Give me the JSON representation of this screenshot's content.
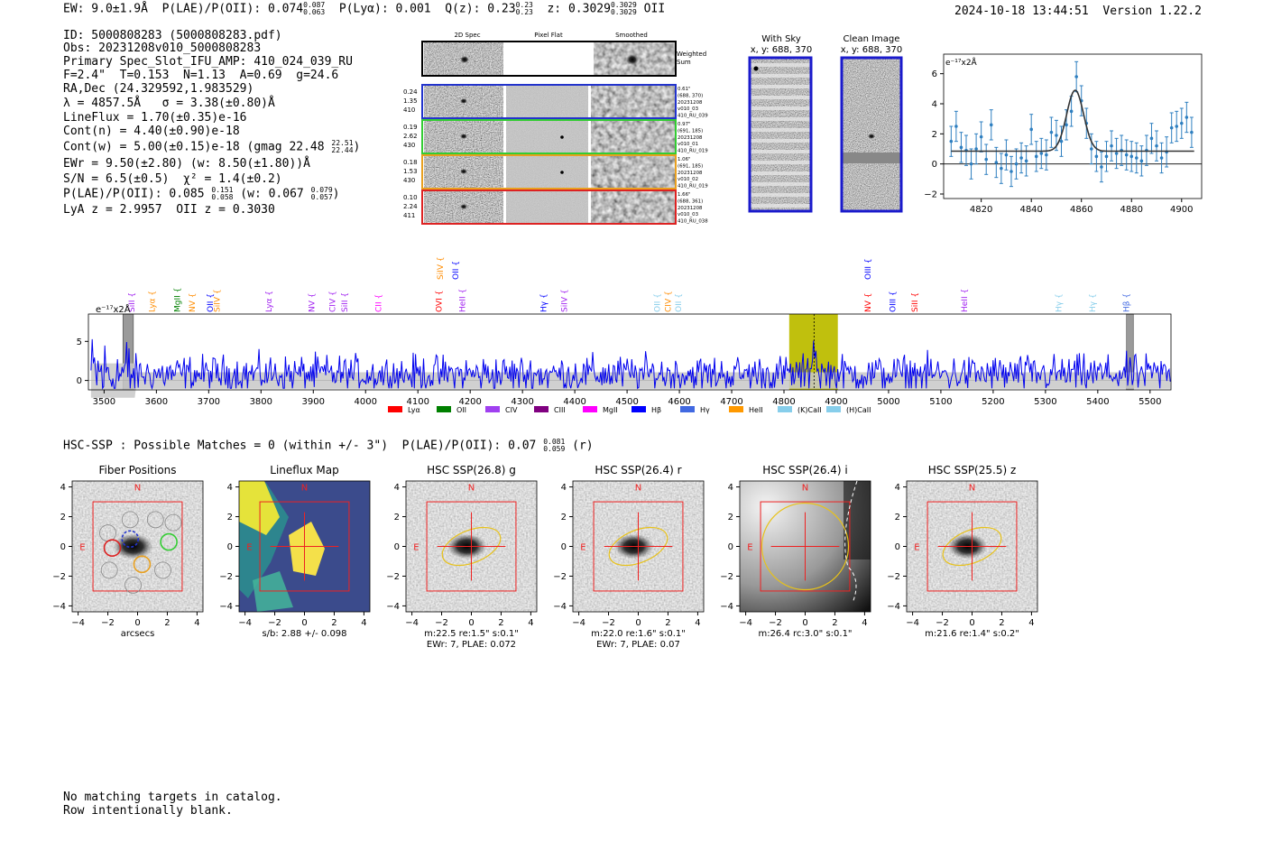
{
  "header": {
    "ew": "EW: 9.0±1.9Å",
    "plae_label": "P(LAE)/P(OII):",
    "plae_val": "0.074",
    "plae_hi": "0.087",
    "plae_lo": "0.063",
    "plya": "P(Lyα): 0.001",
    "qz_label": "Q(z):",
    "qz_val": "0.23",
    "qz_hi": "0.23",
    "qz_lo": "0.23",
    "z_label": "z:",
    "z_val": "0.3029",
    "z_hi": "0.3029",
    "z_lo": "0.3029",
    "z_line": "OII",
    "timestamp": "2024-10-18 13:44:51",
    "version": "Version 1.22.2"
  },
  "info": {
    "line1": "ID: 5000808283 (5000808283.pdf)",
    "line2": "Obs: 20231208v010_5000808283",
    "line3": "Primary Spec_Slot_IFU_AMP: 410_024_039_RU",
    "line4": "F=2.4\"  T=0.153  N=1.13  A=0.69  g=24.6",
    "line5": "RA,Dec (24.329592,1.983529)",
    "line6": "λ = 4857.5Å   σ = 3.38(±0.80)Å",
    "line7": "LineFlux = 1.70(±0.35)e-16",
    "line8": "Cont(n) = 4.40(±0.90)e-18",
    "line9_a": "Cont(w) = 5.00(±0.15)e-18 (gmag 22.48",
    "line9_hi": "22.51",
    "line9_lo": "22.44",
    "line9_b": ")",
    "line10": "EWr = 9.50(±2.80) (w: 8.50(±1.80))Å",
    "line11": "S/N = 6.5(±0.5)  χ² = 1.4(±0.2)",
    "line12_a": "P(LAE)/P(OII): 0.085",
    "line12_hi1": "0.151",
    "line12_lo1": "0.058",
    "line12_b": "(w: 0.067",
    "line12_hi2": "0.079",
    "line12_lo2": "0.057",
    "line12_c": ")",
    "line13": "LyA z = 2.9957  OII z = 0.3030"
  },
  "cutouts": {
    "col_headers": [
      "2D Spec",
      "Pixel Flat",
      "Smoothed"
    ],
    "weighted_label_1": "Weighted",
    "weighted_label_2": "Sum",
    "rows": [
      {
        "left": [
          "0.24",
          "1.35",
          "410"
        ],
        "right": [
          "0.61\"",
          "(688, 370)",
          "20231208",
          "v010_03",
          "410_RU_039"
        ],
        "color": "#2233cc"
      },
      {
        "left": [
          "0.19",
          "2.62",
          "430"
        ],
        "right": [
          "0.97\"",
          "(691, 185)",
          "20231208",
          "v010_01",
          "410_RU_019"
        ],
        "color": "#33cc33"
      },
      {
        "left": [
          "0.18",
          "1.53",
          "430"
        ],
        "right": [
          "1.06\"",
          "(691, 185)",
          "20231208",
          "v010_02",
          "410_RU_019"
        ],
        "color": "#e8a020"
      },
      {
        "left": [
          "0.10",
          "2.24",
          "411"
        ],
        "right": [
          "1.66\"",
          "(688, 361)",
          "20231208",
          "v010_03",
          "410_RU_038"
        ],
        "color": "#dd2222"
      }
    ],
    "with_sky_title": "With Sky",
    "with_sky_xy": "x, y: 688, 370",
    "clean_title": "Clean Image",
    "clean_xy": "x, y: 688, 370"
  },
  "zoom_chart": {
    "unit_label": "e⁻¹⁷x2Å",
    "chart_data": {
      "type": "scatter",
      "xlim": [
        4805,
        4908
      ],
      "ylim": [
        -2.3,
        7.3
      ],
      "xticks": [
        4820,
        4840,
        4860,
        4880,
        4900
      ],
      "yticks": [
        -2,
        0,
        2,
        4,
        6
      ],
      "points_x": [
        4808,
        4810,
        4812,
        4814,
        4816,
        4818,
        4820,
        4822,
        4824,
        4826,
        4828,
        4830,
        4832,
        4834,
        4836,
        4838,
        4840,
        4842,
        4844,
        4846,
        4848,
        4850,
        4852,
        4854,
        4856,
        4858,
        4860,
        4862,
        4864,
        4866,
        4868,
        4870,
        4872,
        4874,
        4876,
        4878,
        4880,
        4882,
        4884,
        4886,
        4888,
        4890,
        4892,
        4894,
        4896,
        4898,
        4900,
        4902,
        4904
      ],
      "points_y": [
        1.5,
        2.5,
        1.1,
        0.9,
        0.0,
        1.0,
        1.8,
        0.3,
        2.6,
        0.1,
        -0.3,
        0.6,
        -0.5,
        0.0,
        0.4,
        0.2,
        2.3,
        0.5,
        0.7,
        0.6,
        2.1,
        1.9,
        1.5,
        2.6,
        3.5,
        5.8,
        4.2,
        2.7,
        1.0,
        0.5,
        -0.2,
        0.5,
        1.2,
        0.7,
        0.9,
        0.6,
        0.5,
        0.4,
        0.2,
        0.9,
        1.7,
        1.2,
        0.4,
        0.8,
        2.4,
        2.5,
        2.7,
        3.1,
        2.1
      ],
      "error": 1.0,
      "fit": {
        "center": 4857.5,
        "sigma": 3.38,
        "amp": 4.05,
        "base": 0.85
      }
    }
  },
  "spectrum": {
    "unit_label": "e⁻¹⁷x2Å",
    "chart_data": {
      "type": "line",
      "xlim": [
        3470,
        5540
      ],
      "ylim": [
        -1.2,
        8.5
      ],
      "xticks": [
        3500,
        3600,
        3700,
        3800,
        3900,
        4000,
        4100,
        4200,
        4300,
        4400,
        4500,
        4600,
        4700,
        4800,
        4900,
        5000,
        5100,
        5200,
        5300,
        5400,
        5500
      ],
      "yticks": [
        0,
        5
      ],
      "highlight": [
        4810,
        4903
      ],
      "line_center": 4857.5,
      "masked": [
        [
          3536,
          3556
        ],
        [
          5455,
          5468
        ]
      ],
      "emission_lines": [
        {
          "label": "SiII",
          "x": 3553,
          "color": "#a020f0",
          "row": 1
        },
        {
          "label": "Lyα",
          "x": 3592,
          "color": "#ff8c00",
          "row": 1
        },
        {
          "label": "MgII",
          "x": 3640,
          "color": "#008000",
          "row": 1
        },
        {
          "label": "NV",
          "x": 3668,
          "color": "#ff8c00",
          "row": 1
        },
        {
          "label": "OII",
          "x": 3703,
          "color": "#0000ff",
          "row": 1
        },
        {
          "label": "SiIV",
          "x": 3716,
          "color": "#ff8c00",
          "row": 1
        },
        {
          "label": "Lyα",
          "x": 3815,
          "color": "#a020f0",
          "row": 1
        },
        {
          "label": "NV",
          "x": 3897,
          "color": "#a020f0",
          "row": 1
        },
        {
          "label": "CIV",
          "x": 3937,
          "color": "#a020f0",
          "row": 1
        },
        {
          "label": "SiII",
          "x": 3960,
          "color": "#a020f0",
          "row": 1
        },
        {
          "label": "CII",
          "x": 4025,
          "color": "#ff00ff",
          "row": 1
        },
        {
          "label": "OVI",
          "x": 4140,
          "color": "#ff0000",
          "row": 1
        },
        {
          "label": "HeII",
          "x": 4185,
          "color": "#a020f0",
          "row": 1
        },
        {
          "label": "SiIV",
          "x": 4143,
          "color": "#ff8c00",
          "row": 2
        },
        {
          "label": "OII",
          "x": 4172,
          "color": "#0000ff",
          "row": 2
        },
        {
          "label": "Hγ",
          "x": 4340,
          "color": "#0000ff",
          "row": 1
        },
        {
          "label": "SiIV",
          "x": 4380,
          "color": "#a020f0",
          "row": 1
        },
        {
          "label": "OII",
          "x": 4558,
          "color": "#87ceeb",
          "row": 1
        },
        {
          "label": "CIV",
          "x": 4578,
          "color": "#ff8c00",
          "row": 1
        },
        {
          "label": "OII",
          "x": 4598,
          "color": "#87ceeb",
          "row": 1
        },
        {
          "label": "OIII",
          "x": 4960,
          "color": "#0000ff",
          "row": 2
        },
        {
          "label": "NV",
          "x": 4960,
          "color": "#ff0000",
          "row": 1
        },
        {
          "label": "OIII",
          "x": 5008,
          "color": "#0000ff",
          "row": 1
        },
        {
          "label": "SiII",
          "x": 5050,
          "color": "#ff0000",
          "row": 1
        },
        {
          "label": "HeII",
          "x": 5145,
          "color": "#a020f0",
          "row": 1
        },
        {
          "label": "Hγ",
          "x": 5325,
          "color": "#87ceeb",
          "row": 1
        },
        {
          "label": "Hγ",
          "x": 5390,
          "color": "#87ceeb",
          "row": 1
        },
        {
          "label": "Hβ",
          "x": 5455,
          "color": "#4169e1",
          "row": 1
        }
      ]
    },
    "legend": [
      {
        "label": "Lyα",
        "color": "#ff0000"
      },
      {
        "label": "OII",
        "color": "#008000"
      },
      {
        "label": "CIV",
        "color": "#a040f0"
      },
      {
        "label": "CIII",
        "color": "#800080"
      },
      {
        "label": "MgII",
        "color": "#ff00ff"
      },
      {
        "label": "Hβ",
        "color": "#0000ff"
      },
      {
        "label": "Hγ",
        "color": "#4169e1"
      },
      {
        "label": "HeII",
        "color": "#ff9900"
      },
      {
        "label": "(K)CaII",
        "color": "#87ceeb"
      },
      {
        "label": "(H)CaII",
        "color": "#87ceeb"
      }
    ]
  },
  "hsc": {
    "summary_a": "HSC-SSP : Possible Matches = 0 (within +/- 3\")  P(LAE)/P(OII): 0.07",
    "summary_hi": "0.081",
    "summary_lo": "0.059",
    "summary_b": "(r)",
    "panels": [
      {
        "title": "Fiber Positions",
        "cap1": "arcsecs",
        "cap2": ""
      },
      {
        "title": "Lineflux Map",
        "cap1": "s/b: 2.88 +/- 0.098",
        "cap2": ""
      },
      {
        "title": "HSC SSP(26.8) g",
        "cap1": "m:22.5  re:1.5\"  s:0.1\"",
        "cap2": "EWr: 7, PLAE: 0.072"
      },
      {
        "title": "HSC SSP(26.4) r",
        "cap1": "m:22.0  re:1.6\"  s:0.1\"",
        "cap2": "EWr: 7, PLAE: 0.07"
      },
      {
        "title": "HSC SSP(26.4) i",
        "cap1": "m:26.4 rc:3.0\"  s:0.1\"",
        "cap2": ""
      },
      {
        "title": "HSC SSP(25.5) z",
        "cap1": "m:21.6  re:1.4\"  s:0.2\"",
        "cap2": ""
      }
    ],
    "ticks": [
      "−4",
      "−2",
      "0",
      "2",
      "4"
    ],
    "north": "N",
    "east": "E"
  },
  "footer": {
    "line1": "No matching targets in catalog.",
    "line2": "Row intentionally blank."
  }
}
